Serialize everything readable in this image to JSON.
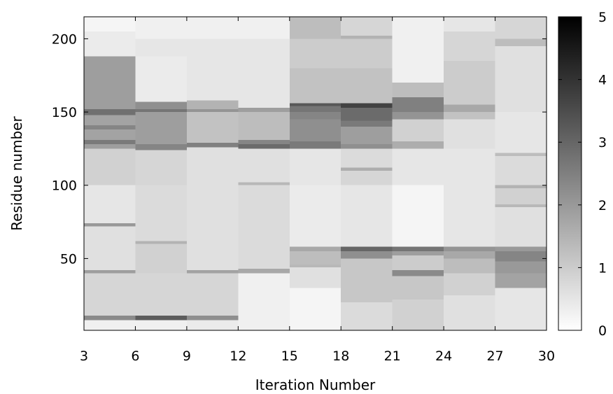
{
  "chart_data": {
    "type": "heatmap",
    "title": "",
    "xlabel": "Iteration Number",
    "ylabel": "Residue number",
    "x_ticks": [
      3,
      6,
      9,
      12,
      15,
      18,
      21,
      24,
      27,
      30
    ],
    "y_ticks": [
      50,
      100,
      150,
      200
    ],
    "xlim": [
      3,
      30
    ],
    "ylim": [
      1,
      215
    ],
    "colorbar": {
      "ticks": [
        0,
        1,
        2,
        3,
        4,
        5
      ],
      "range": [
        0,
        5
      ],
      "colormap": "white-to-black"
    },
    "grid": false,
    "columns": [
      {
        "x_range": [
          3,
          6
        ],
        "residue_values": [
          [
            1,
            8,
            0.3
          ],
          [
            8,
            11,
            2.3
          ],
          [
            11,
            40,
            0.8
          ],
          [
            40,
            42,
            1.9
          ],
          [
            42,
            72,
            0.6
          ],
          [
            72,
            74,
            2.0
          ],
          [
            74,
            100,
            0.5
          ],
          [
            100,
            125,
            0.9
          ],
          [
            125,
            128,
            1.9
          ],
          [
            128,
            131,
            2.6
          ],
          [
            131,
            138,
            1.8
          ],
          [
            138,
            141,
            2.4
          ],
          [
            141,
            148,
            1.8
          ],
          [
            148,
            152,
            2.8
          ],
          [
            152,
            170,
            1.9
          ],
          [
            170,
            188,
            1.9
          ],
          [
            188,
            205,
            0.4
          ],
          [
            205,
            215,
            0.2
          ]
        ]
      },
      {
        "x_range": [
          6,
          9
        ],
        "residue_values": [
          [
            1,
            8,
            0.3
          ],
          [
            8,
            11,
            3.2
          ],
          [
            11,
            40,
            0.8
          ],
          [
            40,
            60,
            0.9
          ],
          [
            60,
            62,
            1.5
          ],
          [
            62,
            100,
            0.7
          ],
          [
            100,
            124,
            0.8
          ],
          [
            124,
            128,
            2.4
          ],
          [
            128,
            150,
            1.9
          ],
          [
            150,
            152,
            2.7
          ],
          [
            152,
            157,
            2.2
          ],
          [
            157,
            188,
            0.4
          ],
          [
            188,
            200,
            0.5
          ],
          [
            200,
            215,
            0.3
          ]
        ]
      },
      {
        "x_range": [
          9,
          12
        ],
        "residue_values": [
          [
            1,
            8,
            0.4
          ],
          [
            8,
            11,
            2.2
          ],
          [
            11,
            40,
            0.8
          ],
          [
            40,
            42,
            1.8
          ],
          [
            42,
            100,
            0.6
          ],
          [
            100,
            126,
            0.6
          ],
          [
            126,
            129,
            2.5
          ],
          [
            129,
            135,
            1.2
          ],
          [
            135,
            150,
            1.2
          ],
          [
            150,
            152,
            2.1
          ],
          [
            152,
            158,
            1.5
          ],
          [
            158,
            200,
            0.5
          ],
          [
            200,
            215,
            0.3
          ]
        ]
      },
      {
        "x_range": [
          12,
          15
        ],
        "residue_values": [
          [
            1,
            40,
            0.3
          ],
          [
            40,
            43,
            1.7
          ],
          [
            43,
            100,
            0.7
          ],
          [
            100,
            102,
            1.4
          ],
          [
            102,
            125,
            0.6
          ],
          [
            125,
            128,
            2.9
          ],
          [
            128,
            131,
            2.4
          ],
          [
            131,
            150,
            1.3
          ],
          [
            150,
            153,
            1.9
          ],
          [
            153,
            200,
            0.5
          ],
          [
            200,
            215,
            0.3
          ]
        ]
      },
      {
        "x_range": [
          15,
          18
        ],
        "residue_values": [
          [
            1,
            30,
            0.2
          ],
          [
            30,
            44,
            0.6
          ],
          [
            44,
            46,
            1.4
          ],
          [
            46,
            55,
            1.3
          ],
          [
            55,
            58,
            1.7
          ],
          [
            58,
            100,
            0.4
          ],
          [
            100,
            125,
            0.5
          ],
          [
            125,
            130,
            2.6
          ],
          [
            130,
            145,
            2.2
          ],
          [
            145,
            150,
            2.4
          ],
          [
            150,
            154,
            2.7
          ],
          [
            154,
            156,
            3.3
          ],
          [
            156,
            180,
            1.2
          ],
          [
            180,
            200,
            1.0
          ],
          [
            200,
            215,
            1.3
          ]
        ]
      },
      {
        "x_range": [
          18,
          21
        ],
        "residue_values": [
          [
            1,
            20,
            0.7
          ],
          [
            20,
            50,
            1.1
          ],
          [
            50,
            55,
            2.2
          ],
          [
            55,
            58,
            3.0
          ],
          [
            58,
            100,
            0.5
          ],
          [
            100,
            110,
            0.8
          ],
          [
            110,
            112,
            1.6
          ],
          [
            112,
            125,
            0.7
          ],
          [
            125,
            128,
            2.2
          ],
          [
            128,
            140,
            1.9
          ],
          [
            140,
            144,
            2.6
          ],
          [
            144,
            153,
            2.9
          ],
          [
            153,
            156,
            3.7
          ],
          [
            156,
            180,
            1.2
          ],
          [
            180,
            200,
            1.0
          ],
          [
            200,
            202,
            1.5
          ],
          [
            202,
            215,
            0.8
          ]
        ]
      },
      {
        "x_range": [
          21,
          24
        ],
        "residue_values": [
          [
            1,
            22,
            0.9
          ],
          [
            22,
            38,
            1.1
          ],
          [
            38,
            42,
            2.3
          ],
          [
            42,
            52,
            1.0
          ],
          [
            52,
            55,
            1.9
          ],
          [
            55,
            58,
            2.7
          ],
          [
            58,
            100,
            0.2
          ],
          [
            100,
            125,
            0.5
          ],
          [
            125,
            130,
            1.6
          ],
          [
            130,
            145,
            0.9
          ],
          [
            145,
            150,
            2.1
          ],
          [
            150,
            160,
            2.5
          ],
          [
            160,
            170,
            1.3
          ],
          [
            170,
            215,
            0.3
          ]
        ]
      },
      {
        "x_range": [
          24,
          27
        ],
        "residue_values": [
          [
            1,
            25,
            0.6
          ],
          [
            25,
            40,
            0.9
          ],
          [
            40,
            50,
            1.3
          ],
          [
            50,
            55,
            1.7
          ],
          [
            55,
            58,
            2.1
          ],
          [
            58,
            100,
            0.5
          ],
          [
            100,
            125,
            0.5
          ],
          [
            125,
            145,
            0.6
          ],
          [
            145,
            150,
            1.2
          ],
          [
            150,
            155,
            1.7
          ],
          [
            155,
            185,
            1.0
          ],
          [
            185,
            205,
            0.8
          ],
          [
            205,
            215,
            0.5
          ]
        ]
      },
      {
        "x_range": [
          27,
          30
        ],
        "residue_values": [
          [
            1,
            30,
            0.5
          ],
          [
            30,
            40,
            1.8
          ],
          [
            40,
            48,
            2.0
          ],
          [
            48,
            55,
            2.4
          ],
          [
            55,
            58,
            2.0
          ],
          [
            58,
            85,
            0.6
          ],
          [
            85,
            87,
            1.4
          ],
          [
            87,
            98,
            0.9
          ],
          [
            98,
            100,
            1.5
          ],
          [
            100,
            120,
            0.7
          ],
          [
            120,
            122,
            1.3
          ],
          [
            122,
            150,
            0.5
          ],
          [
            150,
            195,
            0.6
          ],
          [
            195,
            200,
            1.3
          ],
          [
            200,
            215,
            0.8
          ]
        ]
      }
    ]
  }
}
